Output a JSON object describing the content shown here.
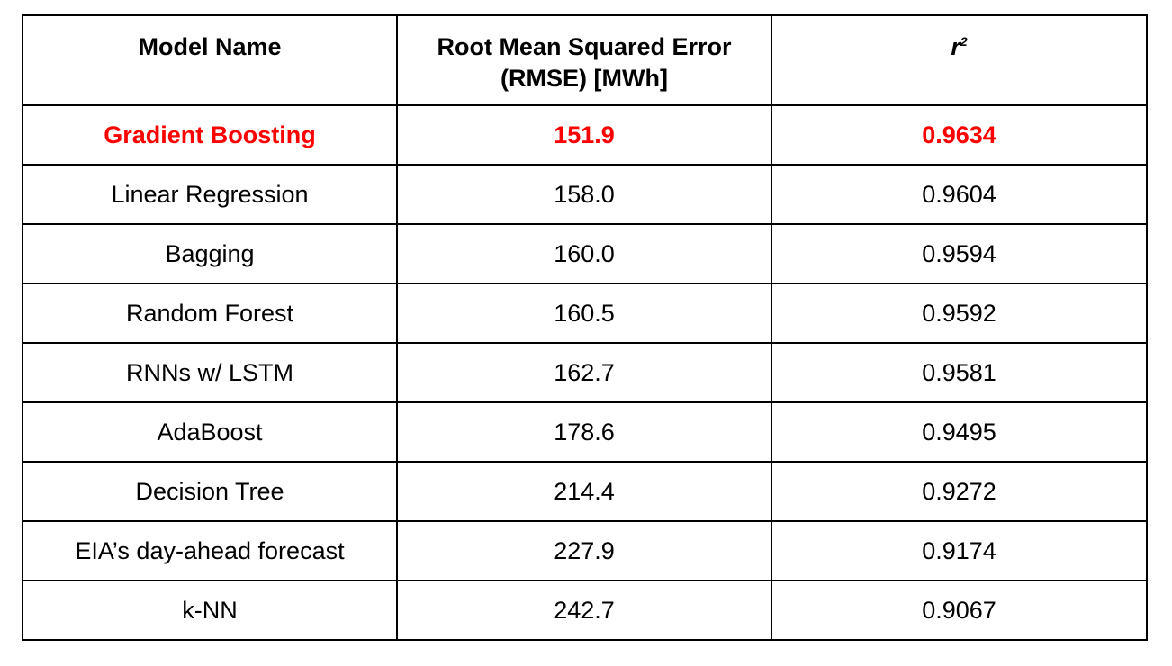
{
  "table": {
    "headers": {
      "model": "Model Name",
      "rmse": "Root Mean Squared Error (RMSE) [MWh]",
      "r2_symbol": "r",
      "r2_exponent": "2"
    },
    "highlight_color": "#ff0000",
    "rows": [
      {
        "model": "Gradient Boosting",
        "rmse": "151.9",
        "r2": "0.9634",
        "highlighted": true
      },
      {
        "model": "Linear Regression",
        "rmse": "158.0",
        "r2": "0.9604"
      },
      {
        "model": "Bagging",
        "rmse": "160.0",
        "r2": "0.9594"
      },
      {
        "model": "Random Forest",
        "rmse": "160.5",
        "r2": "0.9592"
      },
      {
        "model": "RNNs w/ LSTM",
        "rmse": "162.7",
        "r2": "0.9581"
      },
      {
        "model": "AdaBoost",
        "rmse": "178.6",
        "r2": "0.9495"
      },
      {
        "model": "Decision Tree",
        "rmse": "214.4",
        "r2": "0.9272"
      },
      {
        "model": "EIA’s day-ahead forecast",
        "rmse": "227.9",
        "r2": "0.9174"
      },
      {
        "model": "k-NN",
        "rmse": "242.7",
        "r2": "0.9067"
      }
    ]
  }
}
